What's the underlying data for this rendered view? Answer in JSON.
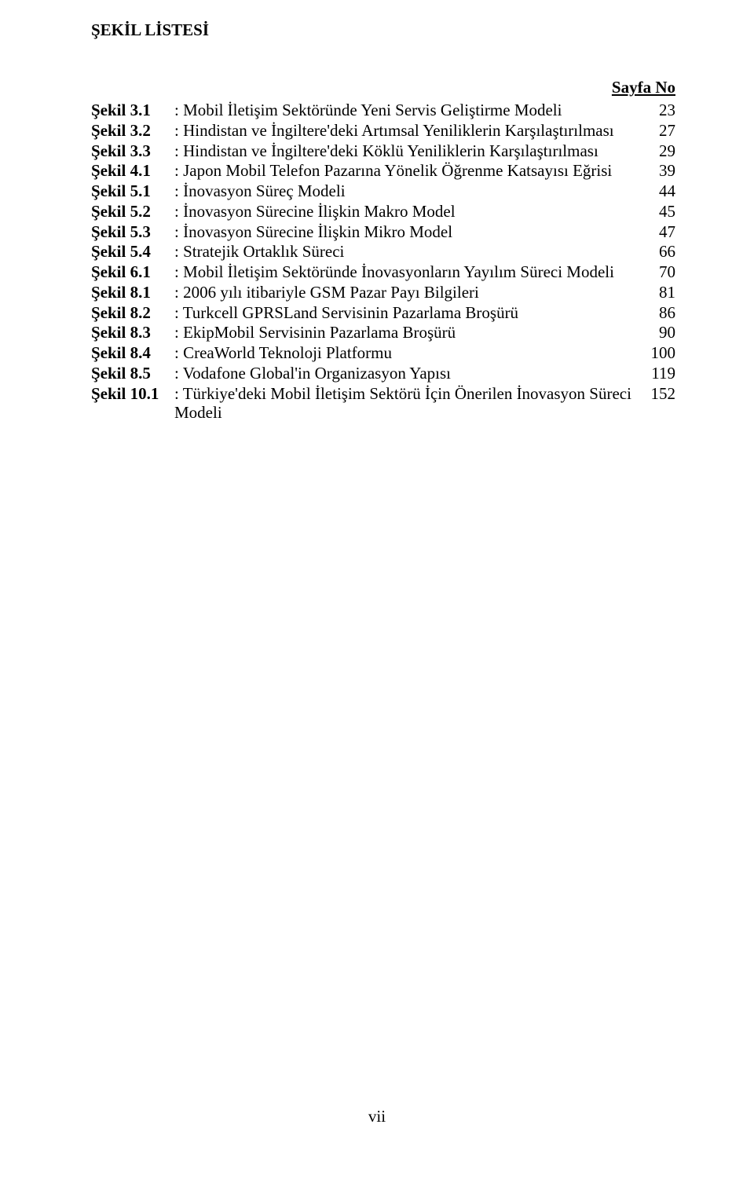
{
  "title": "ŞEKİL LİSTESİ",
  "header": "Sayfa No",
  "footer": "vii",
  "entries": [
    {
      "label": "Şekil 3.1",
      "desc": ": Mobil İletişim Sektöründe Yeni Servis Geliştirme Modeli",
      "page": "23"
    },
    {
      "label": "Şekil 3.2",
      "desc": ": Hindistan ve İngiltere'deki Artımsal Yeniliklerin Karşılaştırılması",
      "page": "27"
    },
    {
      "label": "Şekil 3.3",
      "desc": ": Hindistan ve İngiltere'deki Köklü Yeniliklerin Karşılaştırılması",
      "page": "29"
    },
    {
      "label": "Şekil 4.1",
      "desc": ": Japon Mobil Telefon Pazarına Yönelik Öğrenme Katsayısı Eğrisi",
      "page": "39"
    },
    {
      "label": "Şekil 5.1",
      "desc": ": İnovasyon Süreç Modeli",
      "page": "44"
    },
    {
      "label": "Şekil 5.2",
      "desc": ": İnovasyon Sürecine İlişkin Makro Model",
      "page": "45"
    },
    {
      "label": "Şekil 5.3",
      "desc": ": İnovasyon Sürecine İlişkin Mikro Model",
      "page": "47"
    },
    {
      "label": "Şekil 5.4",
      "desc": ": Stratejik Ortaklık Süreci",
      "page": "66"
    },
    {
      "label": "Şekil 6.1",
      "desc": ": Mobil İletişim Sektöründe İnovasyonların Yayılım Süreci Modeli",
      "page": "70"
    },
    {
      "label": "Şekil 8.1",
      "desc": ": 2006 yılı itibariyle GSM Pazar Payı Bilgileri",
      "page": "81"
    },
    {
      "label": "Şekil 8.2",
      "desc": ": Turkcell GPRSLand Servisinin Pazarlama Broşürü",
      "page": "86"
    },
    {
      "label": "Şekil 8.3",
      "desc": ": EkipMobil Servisinin Pazarlama Broşürü",
      "page": "90"
    },
    {
      "label": "Şekil 8.4",
      "desc": ": CreaWorld Teknoloji Platformu",
      "page": "100"
    },
    {
      "label": "Şekil 8.5",
      "desc": ": Vodafone Global'in Organizasyon Yapısı",
      "page": "119"
    },
    {
      "label": "Şekil 10.1",
      "desc": ": Türkiye'deki Mobil İletişim Sektörü İçin Önerilen İnovasyon Süreci Modeli",
      "page": "152"
    }
  ]
}
